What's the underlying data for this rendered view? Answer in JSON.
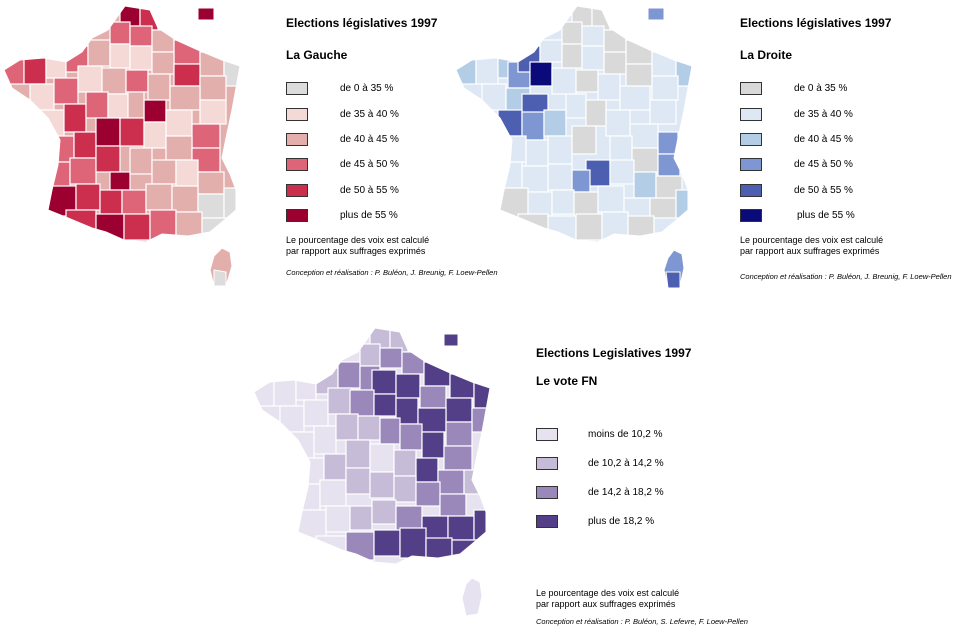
{
  "panels": [
    {
      "id": "gauche",
      "title": "Elections législatives 1997",
      "subtitle": "La Gauche",
      "legend": [
        {
          "label": "de 0 à 35 %",
          "color": "#dcdcdc"
        },
        {
          "label": "de 35 à 40 %",
          "color": "#f5d9d6"
        },
        {
          "label": "de 40 à 45 %",
          "color": "#e3afad"
        },
        {
          "label": "de 45 à 50 %",
          "color": "#de6478"
        },
        {
          "label": "de 50 à 55 %",
          "color": "#cc2f4e"
        },
        {
          "label": "plus de 55 %",
          "color": "#9c0031"
        }
      ],
      "note_line1": "Le pourcentage des voix est calculé",
      "note_line2": "par rapport aux suffrages exprimés",
      "credit": "Conception et réalisation : P. Buléon, J. Breunig, F. Loew-Pellen"
    },
    {
      "id": "droite",
      "title": "Elections législatives 1997",
      "subtitle": "La Droite",
      "legend": [
        {
          "label": "de 0 à 35 %",
          "color": "#d9d9d9"
        },
        {
          "label": "de 35 à 40 %",
          "color": "#dde8f4"
        },
        {
          "label": "de 40 à 45 %",
          "color": "#b4cde6"
        },
        {
          "label": "de 45 à 50 %",
          "color": "#7e97d2"
        },
        {
          "label": "de 50 à 55 %",
          "color": "#4d5fb0"
        },
        {
          "label": "plus de 55 %",
          "color": "#0a0a7a"
        }
      ],
      "note_line1": "Le pourcentage des voix est calculé",
      "note_line2": "par rapport aux suffrages exprimés",
      "credit": "Conception et réalisation : P. Buléon, J. Breunig, F. Loew-Pellen"
    },
    {
      "id": "fn",
      "title": "Elections Legislatives 1997",
      "subtitle": "Le vote FN",
      "legend": [
        {
          "label": "moins de 10,2 %",
          "color": "#e6e2ef"
        },
        {
          "label": "de 10,2 à 14,2 %",
          "color": "#c6bcd8"
        },
        {
          "label": "de 14,2 à 18,2 %",
          "color": "#9a88bb"
        },
        {
          "label": "plus de 18,2 %",
          "color": "#523f87"
        }
      ],
      "note_line1": "Le pourcentage des voix est calculé",
      "note_line2": "par rapport aux suffrages exprimés",
      "credit": "Conception et réalisation : P. Buléon, S. Lefevre, F. Loew-Pellen"
    }
  ]
}
